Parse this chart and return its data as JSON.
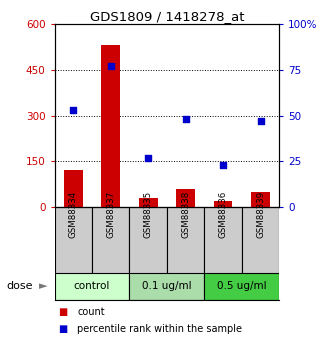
{
  "title": "GDS1809 / 1418278_at",
  "samples": [
    "GSM88334",
    "GSM88337",
    "GSM88335",
    "GSM88338",
    "GSM88336",
    "GSM88339"
  ],
  "counts": [
    120,
    530,
    30,
    60,
    20,
    50
  ],
  "percentiles": [
    53,
    77,
    27,
    48,
    23,
    47
  ],
  "bar_color": "#cc0000",
  "dot_color": "#0000cc",
  "ylim_left": [
    0,
    600
  ],
  "ylim_right": [
    0,
    100
  ],
  "yticks_left": [
    0,
    150,
    300,
    450,
    600
  ],
  "yticks_right": [
    0,
    25,
    50,
    75,
    100
  ],
  "yticklabels_right": [
    "0",
    "25",
    "50",
    "75",
    "100%"
  ],
  "grid_values": [
    150,
    300,
    450
  ],
  "label_count": "count",
  "label_percentile": "percentile rank within the sample",
  "dose_label": "dose",
  "sample_box_color": "#cccccc",
  "group_defs": [
    {
      "indices": [
        0,
        1
      ],
      "label": "control",
      "color": "#ccffcc"
    },
    {
      "indices": [
        2,
        3
      ],
      "label": "0.1 ug/ml",
      "color": "#aaddaa"
    },
    {
      "indices": [
        4,
        5
      ],
      "label": "0.5 ug/ml",
      "color": "#44cc44"
    }
  ]
}
